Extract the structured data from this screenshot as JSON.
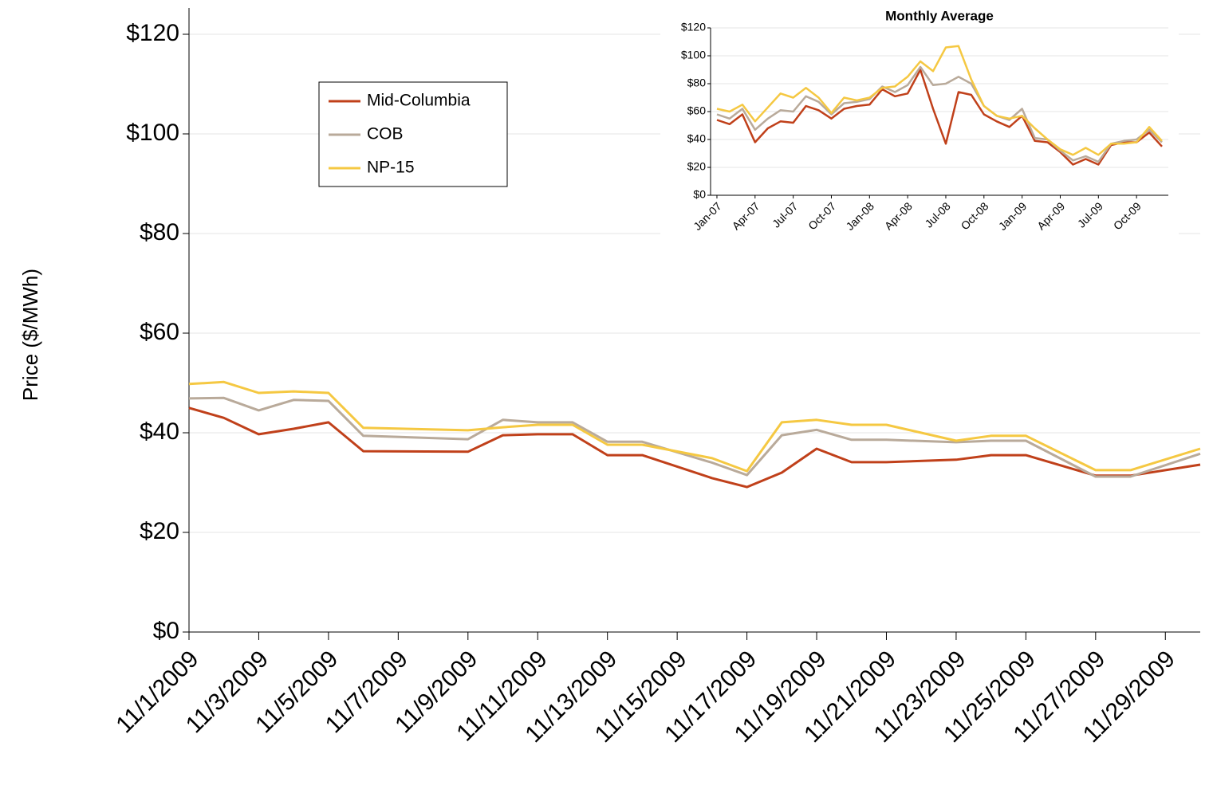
{
  "chart_data": [
    {
      "type": "line",
      "y_label": "Price ($/MWh)",
      "x": [
        "11/1/2009",
        "11/2/2009",
        "11/3/2009",
        "11/4/2009",
        "11/5/2009",
        "11/6/2009",
        "11/9/2009",
        "11/10/2009",
        "11/11/2009",
        "11/12/2009",
        "11/13/2009",
        "11/14/2009",
        "11/16/2009",
        "11/17/2009",
        "11/18/2009",
        "11/19/2009",
        "11/20/2009",
        "11/21/2009",
        "11/23/2009",
        "11/24/2009",
        "11/25/2009",
        "11/27/2009",
        "11/28/2009",
        "11/30/2009"
      ],
      "xlim": [
        "11/1/2009",
        "11/30/2009"
      ],
      "xticks": [
        "11/1/2009",
        "11/3/2009",
        "11/5/2009",
        "11/7/2009",
        "11/9/2009",
        "11/11/2009",
        "11/13/2009",
        "11/15/2009",
        "11/17/2009",
        "11/19/2009",
        "11/21/2009",
        "11/23/2009",
        "11/25/2009",
        "11/27/2009",
        "11/29/2009"
      ],
      "ylim": [
        0,
        120
      ],
      "yticks": [
        {
          "value": 0,
          "label": "$0"
        },
        {
          "value": 20,
          "label": "$20"
        },
        {
          "value": 40,
          "label": "$40"
        },
        {
          "value": 60,
          "label": "$60"
        },
        {
          "value": 80,
          "label": "$80"
        },
        {
          "value": 100,
          "label": "$100"
        },
        {
          "value": 120,
          "label": "$120"
        }
      ],
      "grid": true,
      "legend": "upper left",
      "series": [
        {
          "name": "Mid-Columbia",
          "color": "#c0401a",
          "values": [
            45.0,
            43.0,
            39.7,
            40.8,
            42.1,
            36.3,
            36.2,
            39.5,
            39.7,
            39.7,
            35.5,
            35.5,
            30.9,
            29.1,
            32.0,
            36.8,
            34.1,
            34.1,
            34.6,
            35.5,
            35.5,
            31.4,
            31.4,
            33.6
          ]
        },
        {
          "name": "COB",
          "color": "#b9aa9a",
          "values": [
            46.9,
            47.0,
            44.5,
            46.6,
            46.4,
            39.4,
            38.7,
            42.6,
            42.1,
            42.1,
            38.2,
            38.2,
            34.0,
            31.5,
            39.5,
            40.6,
            38.6,
            38.6,
            38.1,
            38.4,
            38.4,
            31.2,
            31.2,
            35.8
          ]
        },
        {
          "name": "NP-15",
          "color": "#f5c842",
          "values": [
            49.8,
            50.2,
            48.0,
            48.3,
            48.0,
            41.0,
            40.5,
            41.1,
            41.6,
            41.6,
            37.6,
            37.6,
            34.9,
            32.3,
            42.1,
            42.6,
            41.6,
            41.6,
            38.4,
            39.4,
            39.4,
            32.5,
            32.5,
            36.8
          ]
        }
      ]
    },
    {
      "type": "line",
      "title": "Monthly Average",
      "categories": [
        "Jan-07",
        null,
        null,
        "Apr-07",
        null,
        null,
        "Jul-07",
        null,
        null,
        "Oct-07",
        null,
        null,
        "Jan-08",
        null,
        null,
        "Apr-08",
        null,
        null,
        "Jul-08",
        null,
        null,
        "Oct-08",
        null,
        null,
        "Jan-09",
        null,
        null,
        "Apr-09",
        null,
        null,
        "Jul-09",
        null,
        null,
        "Oct-09",
        null,
        null
      ],
      "ylim": [
        0,
        120
      ],
      "yticks": [
        {
          "value": 0,
          "label": "$0"
        },
        {
          "value": 20,
          "label": "$20"
        },
        {
          "value": 40,
          "label": "$40"
        },
        {
          "value": 60,
          "label": "$60"
        },
        {
          "value": 80,
          "label": "$80"
        },
        {
          "value": 100,
          "label": "$100"
        },
        {
          "value": 120,
          "label": "$120"
        }
      ],
      "grid": true,
      "series": [
        {
          "name": "Mid-Columbia",
          "color": "#c0401a",
          "values": [
            54,
            51,
            58,
            38,
            48,
            53,
            52,
            64,
            61,
            55,
            62,
            64,
            65,
            76,
            71,
            73,
            90,
            62,
            37,
            74,
            72,
            58,
            53,
            49,
            57,
            39,
            38,
            31,
            22,
            26,
            22,
            36,
            38,
            38,
            45,
            35
          ]
        },
        {
          "name": "COB",
          "color": "#b9aa9a",
          "values": [
            58,
            55,
            62,
            47,
            55,
            61,
            60,
            71,
            67,
            58,
            66,
            67,
            69,
            78,
            74,
            79,
            92,
            79,
            80,
            85,
            80,
            64,
            57,
            54,
            62,
            41,
            40,
            32,
            25,
            28,
            24,
            37,
            39,
            40,
            47,
            38
          ]
        },
        {
          "name": "NP-15",
          "color": "#f5c842",
          "values": [
            62,
            60,
            65,
            53,
            63,
            73,
            70,
            77,
            70,
            59,
            70,
            68,
            70,
            77,
            78,
            85,
            96,
            89,
            106,
            107,
            83,
            64,
            57,
            55,
            57,
            48,
            40,
            33,
            29,
            34,
            29,
            37,
            37,
            38,
            49,
            39
          ]
        }
      ]
    }
  ]
}
